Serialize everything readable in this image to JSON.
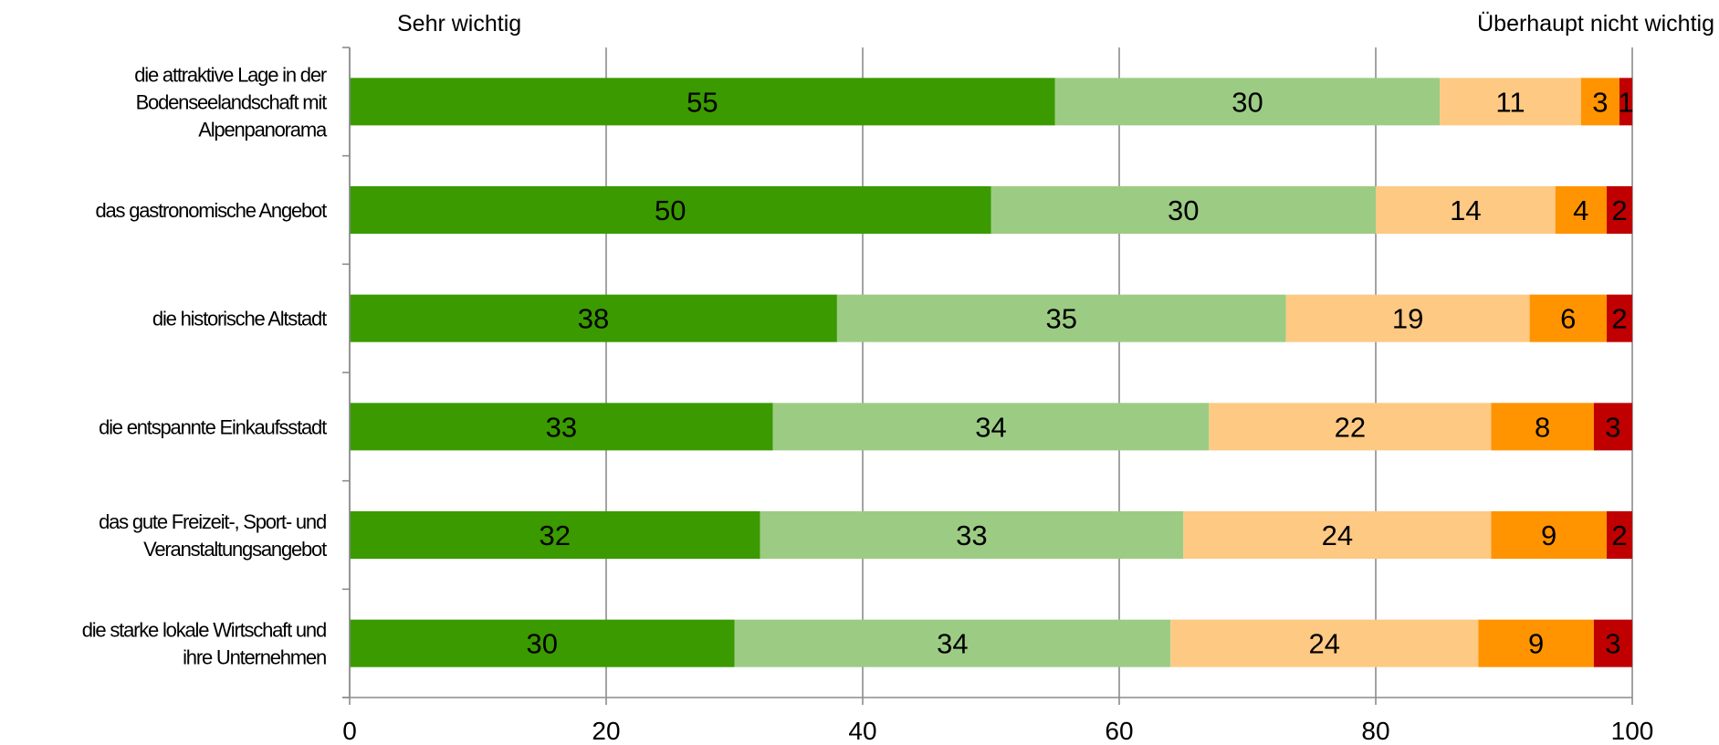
{
  "chart_data": {
    "type": "bar",
    "orientation": "horizontal",
    "stacked": true,
    "header_left": "Sehr wichtig",
    "header_right": "Überhaupt nicht wichtig",
    "categories": [
      [
        "die attraktive Lage in der",
        "Bodenseelandschaft mit",
        "Alpenpanorama"
      ],
      [
        "das gastronomische Angebot"
      ],
      [
        "die historische Altstadt"
      ],
      [
        "die entspannte Einkaufsstadt"
      ],
      [
        "das gute Freizeit-, Sport- und",
        "Veranstaltungsangebot"
      ],
      [
        "die starke lokale Wirtschaft und",
        "ihre Unternehmen"
      ]
    ],
    "series": [
      {
        "color": "#3a9a00",
        "values": [
          55,
          50,
          38,
          33,
          32,
          30
        ]
      },
      {
        "color": "#9ccc84",
        "values": [
          30,
          30,
          35,
          34,
          33,
          34
        ]
      },
      {
        "color": "#fdc983",
        "values": [
          11,
          14,
          19,
          22,
          24,
          24
        ]
      },
      {
        "color": "#ff9400",
        "values": [
          3,
          4,
          6,
          8,
          9,
          9
        ]
      },
      {
        "color": "#c00000",
        "values": [
          1,
          2,
          2,
          3,
          2,
          3
        ]
      }
    ],
    "xlim": [
      0,
      100
    ],
    "xticks": [
      "0",
      "20",
      "40",
      "60",
      "80",
      "100"
    ],
    "grid": true,
    "legend": "none"
  }
}
